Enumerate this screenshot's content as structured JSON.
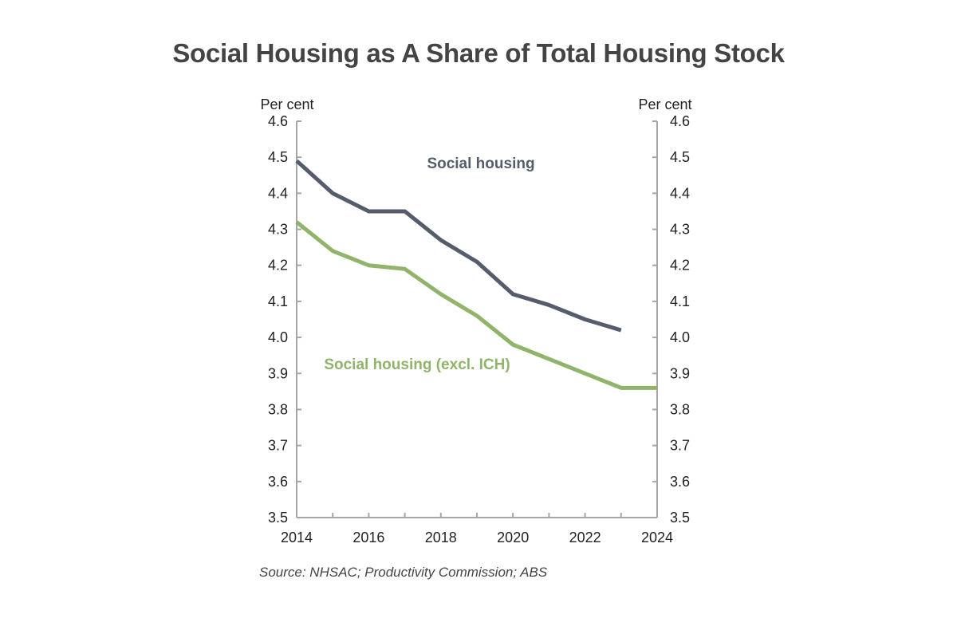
{
  "chart_data": {
    "type": "line",
    "title": "Social Housing as A Share of Total Housing Stock",
    "source": "Source: NHSAC; Productivity Commission; ABS",
    "xlabel": "",
    "ylabel_left": "Per cent",
    "ylabel_right": "Per cent",
    "xlim": [
      2014,
      2024
    ],
    "ylim": [
      3.5,
      4.6
    ],
    "x_ticks": [
      "2014",
      "2016",
      "2018",
      "2020",
      "2022",
      "2024"
    ],
    "y_ticks": [
      "3.5",
      "3.6",
      "3.7",
      "3.8",
      "3.9",
      "4.0",
      "4.1",
      "4.2",
      "4.3",
      "4.4",
      "4.5",
      "4.6"
    ],
    "grid": false,
    "legend": "inline labels",
    "series": [
      {
        "name": "Social housing",
        "color": "#555c6c",
        "x": [
          2014,
          2015,
          2016,
          2017,
          2018,
          2019,
          2020,
          2021,
          2022,
          2023
        ],
        "values": [
          4.49,
          4.4,
          4.35,
          4.35,
          4.27,
          4.21,
          4.12,
          4.09,
          4.05,
          4.02
        ]
      },
      {
        "name": "Social housing (excl. ICH)",
        "color": "#8fb46a",
        "x": [
          2014,
          2015,
          2016,
          2017,
          2018,
          2019,
          2020,
          2021,
          2022,
          2023,
          2024
        ],
        "values": [
          4.32,
          4.24,
          4.2,
          4.19,
          4.12,
          4.06,
          3.98,
          3.94,
          3.9,
          3.86,
          3.86
        ]
      }
    ]
  }
}
